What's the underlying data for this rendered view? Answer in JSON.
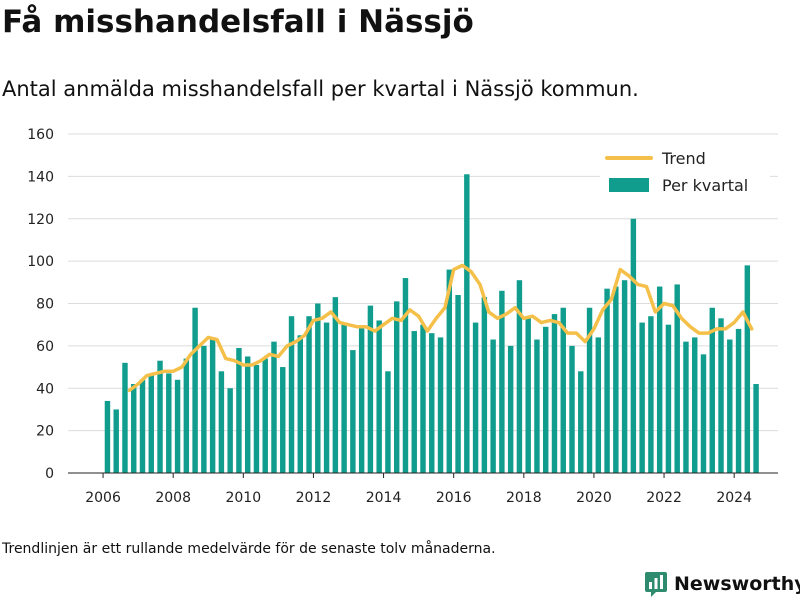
{
  "title": "Få misshandelsfall i Nässjö",
  "subtitle": "Antal anmälda misshandelsfall per kvartal i Nässjö kommun.",
  "footnote": "Trendlinjen är ett rullande medelvärde för de senaste tolv månaderna.",
  "brand": {
    "name": "Newsworthy",
    "color": "#2e8b6e",
    "logo": "newsworthy-logo"
  },
  "chart_data": {
    "type": "bar",
    "title": "",
    "xlabel": "",
    "ylabel": "",
    "ylim": [
      0,
      160
    ],
    "yticks": [
      0,
      20,
      40,
      60,
      80,
      100,
      120,
      140,
      160
    ],
    "xlim": [
      2005.0,
      2025.25
    ],
    "xticks": [
      "2006",
      "2008",
      "2010",
      "2012",
      "2014",
      "2016",
      "2018",
      "2020",
      "2022",
      "2024"
    ],
    "grid": true,
    "legend_position": "top-right",
    "series": [
      {
        "name": "Per kvartal",
        "type": "bar",
        "color": "#119d8e",
        "x": [
          "2006 Q1",
          "2006 Q2",
          "2006 Q3",
          "2006 Q4",
          "2007 Q1",
          "2007 Q2",
          "2007 Q3",
          "2007 Q4",
          "2008 Q1",
          "2008 Q2",
          "2008 Q3",
          "2008 Q4",
          "2009 Q1",
          "2009 Q2",
          "2009 Q3",
          "2009 Q4",
          "2010 Q1",
          "2010 Q2",
          "2010 Q3",
          "2010 Q4",
          "2011 Q1",
          "2011 Q2",
          "2011 Q3",
          "2011 Q4",
          "2012 Q1",
          "2012 Q2",
          "2012 Q3",
          "2012 Q4",
          "2013 Q1",
          "2013 Q2",
          "2013 Q3",
          "2013 Q4",
          "2014 Q1",
          "2014 Q2",
          "2014 Q3",
          "2014 Q4",
          "2015 Q1",
          "2015 Q2",
          "2015 Q3",
          "2015 Q4",
          "2016 Q1",
          "2016 Q2",
          "2016 Q3",
          "2016 Q4",
          "2017 Q1",
          "2017 Q2",
          "2017 Q3",
          "2017 Q4",
          "2018 Q1",
          "2018 Q2",
          "2018 Q3",
          "2018 Q4",
          "2019 Q1",
          "2019 Q2",
          "2019 Q3",
          "2019 Q4",
          "2020 Q1",
          "2020 Q2",
          "2020 Q3",
          "2020 Q4",
          "2021 Q1",
          "2021 Q2",
          "2021 Q3",
          "2021 Q4",
          "2022 Q1",
          "2022 Q2",
          "2022 Q3",
          "2022 Q4",
          "2023 Q1",
          "2023 Q2",
          "2023 Q3",
          "2023 Q4",
          "2024 Q1",
          "2024 Q2",
          "2024 Q3"
        ],
        "values": [
          34,
          30,
          52,
          42,
          44,
          47,
          53,
          47,
          44,
          54,
          78,
          60,
          63,
          48,
          40,
          59,
          55,
          51,
          54,
          62,
          50,
          74,
          65,
          74,
          80,
          71,
          83,
          71,
          58,
          69,
          79,
          72,
          48,
          81,
          92,
          67,
          70,
          66,
          64,
          96,
          84,
          141,
          71,
          83,
          63,
          86,
          60,
          91,
          73,
          63,
          69,
          75,
          78,
          60,
          48,
          78,
          64,
          87,
          88,
          91,
          120,
          71,
          74,
          88,
          70,
          89,
          62,
          64,
          56,
          78,
          73,
          63,
          68,
          98,
          42
        ]
      },
      {
        "name": "Trend",
        "type": "line",
        "color": "#f5c04a",
        "x": [
          2006.75,
          2007.0,
          2007.25,
          2007.5,
          2007.75,
          2008.0,
          2008.25,
          2008.5,
          2008.75,
          2009.0,
          2009.25,
          2009.5,
          2009.75,
          2010.0,
          2010.25,
          2010.5,
          2010.75,
          2011.0,
          2011.25,
          2011.5,
          2011.75,
          2012.0,
          2012.25,
          2012.5,
          2012.75,
          2013.0,
          2013.25,
          2013.5,
          2013.75,
          2014.0,
          2014.25,
          2014.5,
          2014.75,
          2015.0,
          2015.25,
          2015.5,
          2015.75,
          2016.0,
          2016.25,
          2016.5,
          2016.75,
          2017.0,
          2017.25,
          2017.5,
          2017.75,
          2018.0,
          2018.25,
          2018.5,
          2018.75,
          2019.0,
          2019.25,
          2019.5,
          2019.75,
          2020.0,
          2020.25,
          2020.5,
          2020.75,
          2021.0,
          2021.25,
          2021.5,
          2021.75,
          2022.0,
          2022.25,
          2022.5,
          2022.75,
          2023.0,
          2023.25,
          2023.5,
          2023.75,
          2024.0,
          2024.25,
          2024.5
        ],
        "values": [
          39,
          42,
          46,
          47,
          48,
          48,
          50,
          56,
          60,
          64,
          63,
          54,
          53,
          51,
          51,
          53,
          56,
          55,
          60,
          62,
          65,
          72,
          73,
          76,
          71,
          70,
          69,
          69,
          67,
          70,
          73,
          72,
          77,
          74,
          67,
          73,
          78,
          96,
          98,
          95,
          89,
          76,
          73,
          75,
          78,
          73,
          74,
          71,
          72,
          71,
          66,
          66,
          62,
          68,
          77,
          82,
          96,
          93,
          89,
          88,
          76,
          80,
          79,
          73,
          69,
          66,
          66,
          68,
          68,
          71,
          76,
          68
        ]
      }
    ]
  }
}
